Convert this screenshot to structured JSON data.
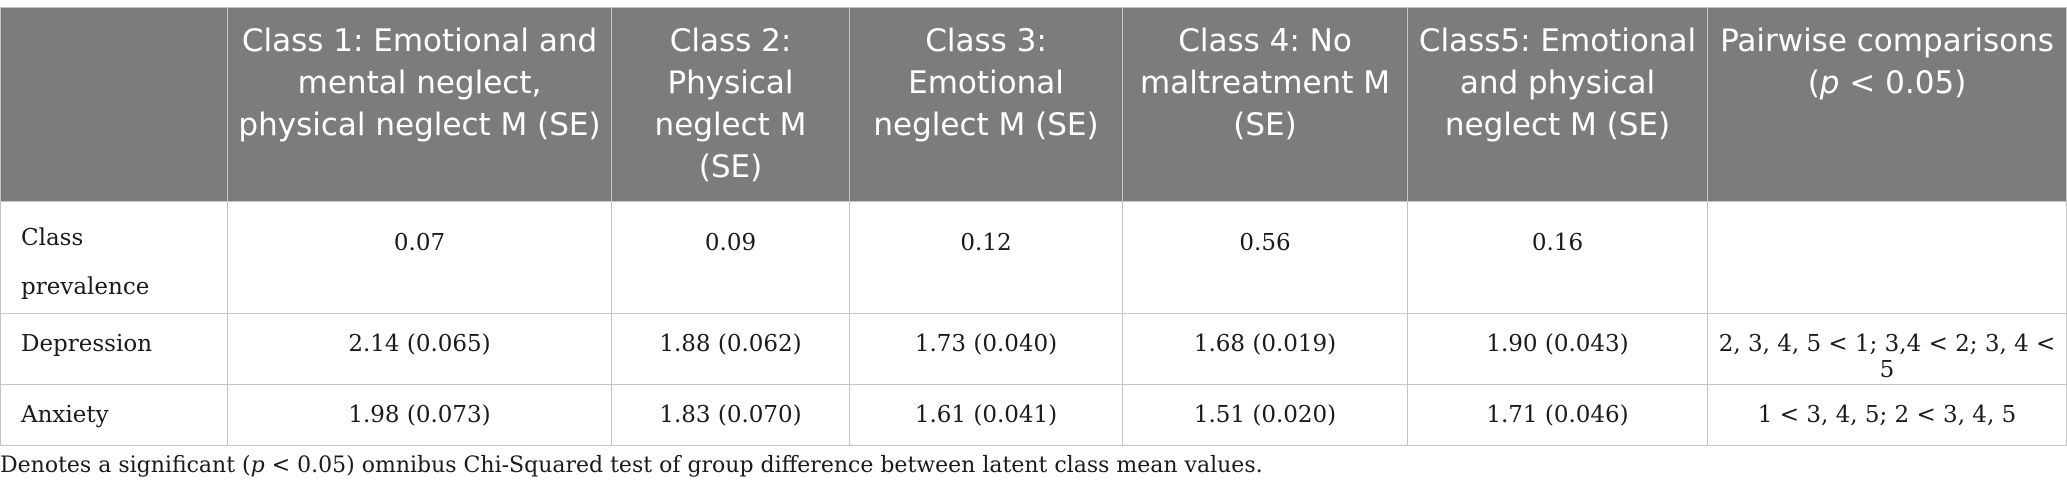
{
  "table": {
    "headers": [
      "",
      "Class 1: Emotional and mental neglect, physical neglect M (SE)",
      "Class 2: Physical neglect M (SE)",
      "Class 3: Emotional neglect M (SE)",
      "Class 4: No maltreatment M (SE)",
      "Class5: Emotional and physical neglect M (SE)",
      "Pairwise comparisons"
    ],
    "pairwise_condition": "(p < 0.05)",
    "rows": [
      {
        "label": "Class prevalence",
        "cells": [
          "0.07",
          "0.09",
          "0.12",
          "0.56",
          "0.16",
          ""
        ]
      },
      {
        "label": "Depression",
        "cells": [
          "2.14 (0.065)",
          "1.88 (0.062)",
          "1.73 (0.040)",
          "1.68 (0.019)",
          "1.90 (0.043)",
          "2, 3, 4, 5 < 1; 3,4 < 2; 3, 4 < 5"
        ]
      },
      {
        "label": "Anxiety",
        "cells": [
          "1.98 (0.073)",
          "1.83 (0.070)",
          "1.61 (0.041)",
          "1.51 (0.020)",
          "1.71 (0.046)",
          "1 < 3, 4, 5; 2 < 3, 4, 5"
        ]
      }
    ]
  },
  "footnote": {
    "before": "Denotes a significant (",
    "p": "p",
    "after": " < 0.05) omnibus Chi-Squared test of group difference between latent class mean values."
  }
}
